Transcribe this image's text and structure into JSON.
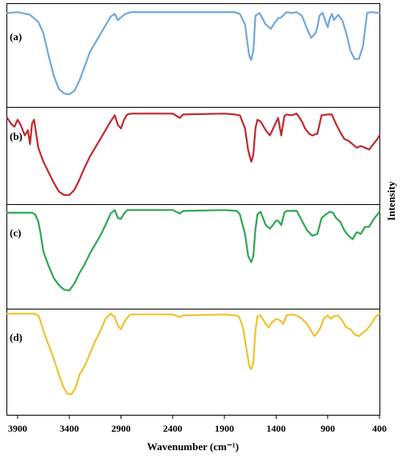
{
  "chart_data": {
    "type": "line",
    "xlabel": "Wavenumber (cm⁻¹)",
    "ylabel": "Intensity",
    "x_ticks": [
      3900,
      3400,
      2900,
      2400,
      1900,
      1400,
      900,
      400
    ],
    "xlim": [
      4000,
      400
    ],
    "grid": false,
    "legend": "none",
    "series": [
      {
        "name": "(a)",
        "color": "#6fa8dc",
        "points": [
          [
            4000,
            0.98
          ],
          [
            3900,
            0.99
          ],
          [
            3780,
            0.96
          ],
          [
            3700,
            0.88
          ],
          [
            3650,
            0.75
          ],
          [
            3600,
            0.5
          ],
          [
            3550,
            0.27
          ],
          [
            3500,
            0.12
          ],
          [
            3450,
            0.07
          ],
          [
            3400,
            0.06
          ],
          [
            3350,
            0.1
          ],
          [
            3300,
            0.22
          ],
          [
            3250,
            0.38
          ],
          [
            3200,
            0.54
          ],
          [
            3150,
            0.64
          ],
          [
            3100,
            0.74
          ],
          [
            3050,
            0.84
          ],
          [
            3000,
            0.94
          ],
          [
            2960,
            0.97
          ],
          [
            2930,
            0.9
          ],
          [
            2900,
            0.93
          ],
          [
            2860,
            0.97
          ],
          [
            2800,
            0.99
          ],
          [
            2400,
            0.99
          ],
          [
            2300,
            0.99
          ],
          [
            1900,
            0.99
          ],
          [
            1800,
            0.99
          ],
          [
            1750,
            0.97
          ],
          [
            1700,
            0.85
          ],
          [
            1660,
            0.5
          ],
          [
            1640,
            0.45
          ],
          [
            1620,
            0.55
          ],
          [
            1600,
            0.95
          ],
          [
            1560,
            0.98
          ],
          [
            1500,
            0.85
          ],
          [
            1450,
            0.8
          ],
          [
            1420,
            0.86
          ],
          [
            1380,
            0.92
          ],
          [
            1350,
            0.93
          ],
          [
            1300,
            0.99
          ],
          [
            1250,
            0.98
          ],
          [
            1200,
            0.99
          ],
          [
            1150,
            0.95
          ],
          [
            1100,
            0.8
          ],
          [
            1060,
            0.7
          ],
          [
            1020,
            0.75
          ],
          [
            1000,
            0.82
          ],
          [
            980,
            0.95
          ],
          [
            950,
            0.98
          ],
          [
            920,
            0.88
          ],
          [
            900,
            0.82
          ],
          [
            880,
            0.92
          ],
          [
            860,
            0.97
          ],
          [
            840,
            0.9
          ],
          [
            800,
            0.96
          ],
          [
            760,
            0.9
          ],
          [
            720,
            0.75
          ],
          [
            680,
            0.55
          ],
          [
            640,
            0.46
          ],
          [
            600,
            0.46
          ],
          [
            560,
            0.6
          ],
          [
            520,
            0.98
          ],
          [
            480,
            0.99
          ],
          [
            400,
            0.98
          ]
        ]
      },
      {
        "name": "(b)",
        "color": "#c0282d",
        "points": [
          [
            4000,
            0.92
          ],
          [
            3960,
            0.85
          ],
          [
            3930,
            0.82
          ],
          [
            3900,
            0.9
          ],
          [
            3870,
            0.84
          ],
          [
            3830,
            0.72
          ],
          [
            3800,
            0.78
          ],
          [
            3780,
            0.62
          ],
          [
            3760,
            0.86
          ],
          [
            3740,
            0.9
          ],
          [
            3720,
            0.74
          ],
          [
            3700,
            0.58
          ],
          [
            3650,
            0.42
          ],
          [
            3600,
            0.3
          ],
          [
            3550,
            0.18
          ],
          [
            3500,
            0.08
          ],
          [
            3450,
            0.04
          ],
          [
            3400,
            0.04
          ],
          [
            3350,
            0.1
          ],
          [
            3300,
            0.22
          ],
          [
            3250,
            0.36
          ],
          [
            3200,
            0.48
          ],
          [
            3150,
            0.58
          ],
          [
            3100,
            0.68
          ],
          [
            3050,
            0.78
          ],
          [
            3000,
            0.88
          ],
          [
            2960,
            0.95
          ],
          [
            2930,
            0.84
          ],
          [
            2900,
            0.8
          ],
          [
            2870,
            0.9
          ],
          [
            2840,
            0.96
          ],
          [
            2800,
            0.97
          ],
          [
            2400,
            0.97
          ],
          [
            2330,
            0.92
          ],
          [
            2300,
            0.96
          ],
          [
            1900,
            0.97
          ],
          [
            1800,
            0.96
          ],
          [
            1750,
            0.95
          ],
          [
            1700,
            0.8
          ],
          [
            1670,
            0.55
          ],
          [
            1640,
            0.42
          ],
          [
            1620,
            0.5
          ],
          [
            1600,
            0.8
          ],
          [
            1580,
            0.9
          ],
          [
            1550,
            0.88
          ],
          [
            1500,
            0.78
          ],
          [
            1460,
            0.72
          ],
          [
            1420,
            0.82
          ],
          [
            1380,
            0.92
          ],
          [
            1350,
            0.72
          ],
          [
            1320,
            0.94
          ],
          [
            1300,
            0.96
          ],
          [
            1250,
            0.95
          ],
          [
            1200,
            0.97
          ],
          [
            1150,
            0.88
          ],
          [
            1120,
            0.8
          ],
          [
            1080,
            0.74
          ],
          [
            1050,
            0.72
          ],
          [
            1000,
            0.74
          ],
          [
            960,
            0.95
          ],
          [
            900,
            0.96
          ],
          [
            860,
            0.96
          ],
          [
            820,
            0.85
          ],
          [
            780,
            0.76
          ],
          [
            740,
            0.68
          ],
          [
            700,
            0.66
          ],
          [
            660,
            0.62
          ],
          [
            620,
            0.58
          ],
          [
            580,
            0.6
          ],
          [
            540,
            0.58
          ],
          [
            500,
            0.56
          ],
          [
            460,
            0.62
          ],
          [
            420,
            0.68
          ],
          [
            400,
            0.72
          ]
        ]
      },
      {
        "name": "(c)",
        "color": "#2ea653",
        "points": [
          [
            4000,
            0.94
          ],
          [
            3900,
            0.94
          ],
          [
            3800,
            0.94
          ],
          [
            3760,
            0.94
          ],
          [
            3730,
            0.92
          ],
          [
            3700,
            0.84
          ],
          [
            3680,
            0.72
          ],
          [
            3650,
            0.5
          ],
          [
            3600,
            0.34
          ],
          [
            3550,
            0.2
          ],
          [
            3500,
            0.12
          ],
          [
            3450,
            0.07
          ],
          [
            3400,
            0.06
          ],
          [
            3350,
            0.14
          ],
          [
            3300,
            0.26
          ],
          [
            3250,
            0.36
          ],
          [
            3200,
            0.48
          ],
          [
            3150,
            0.58
          ],
          [
            3100,
            0.68
          ],
          [
            3050,
            0.8
          ],
          [
            3000,
            0.93
          ],
          [
            2960,
            0.97
          ],
          [
            2930,
            0.88
          ],
          [
            2900,
            0.87
          ],
          [
            2870,
            0.93
          ],
          [
            2840,
            0.97
          ],
          [
            2800,
            0.97
          ],
          [
            2400,
            0.97
          ],
          [
            2330,
            0.93
          ],
          [
            2300,
            0.96
          ],
          [
            1900,
            0.97
          ],
          [
            1780,
            0.96
          ],
          [
            1750,
            0.92
          ],
          [
            1700,
            0.7
          ],
          [
            1670,
            0.45
          ],
          [
            1640,
            0.38
          ],
          [
            1620,
            0.45
          ],
          [
            1600,
            0.75
          ],
          [
            1580,
            0.92
          ],
          [
            1550,
            0.95
          ],
          [
            1500,
            0.8
          ],
          [
            1460,
            0.76
          ],
          [
            1430,
            0.8
          ],
          [
            1400,
            0.85
          ],
          [
            1380,
            0.85
          ],
          [
            1350,
            0.8
          ],
          [
            1320,
            0.94
          ],
          [
            1300,
            0.96
          ],
          [
            1250,
            0.96
          ],
          [
            1200,
            0.96
          ],
          [
            1150,
            0.85
          ],
          [
            1100,
            0.74
          ],
          [
            1050,
            0.68
          ],
          [
            1000,
            0.7
          ],
          [
            960,
            0.88
          ],
          [
            920,
            0.92
          ],
          [
            880,
            0.95
          ],
          [
            850,
            0.94
          ],
          [
            820,
            0.88
          ],
          [
            780,
            0.84
          ],
          [
            740,
            0.74
          ],
          [
            700,
            0.68
          ],
          [
            660,
            0.64
          ],
          [
            620,
            0.72
          ],
          [
            580,
            0.7
          ],
          [
            540,
            0.78
          ],
          [
            500,
            0.78
          ],
          [
            460,
            0.86
          ],
          [
            420,
            0.92
          ],
          [
            400,
            0.95
          ]
        ]
      },
      {
        "name": "(d)",
        "color": "#f2c12e",
        "points": [
          [
            4000,
            0.98
          ],
          [
            3900,
            0.98
          ],
          [
            3800,
            0.98
          ],
          [
            3740,
            0.98
          ],
          [
            3700,
            0.96
          ],
          [
            3680,
            0.9
          ],
          [
            3650,
            0.78
          ],
          [
            3600,
            0.62
          ],
          [
            3550,
            0.46
          ],
          [
            3500,
            0.28
          ],
          [
            3460,
            0.14
          ],
          [
            3420,
            0.06
          ],
          [
            3380,
            0.05
          ],
          [
            3340,
            0.12
          ],
          [
            3300,
            0.28
          ],
          [
            3250,
            0.38
          ],
          [
            3200,
            0.52
          ],
          [
            3150,
            0.66
          ],
          [
            3100,
            0.78
          ],
          [
            3050,
            0.92
          ],
          [
            3000,
            0.98
          ],
          [
            2960,
            0.94
          ],
          [
            2930,
            0.84
          ],
          [
            2900,
            0.8
          ],
          [
            2860,
            0.9
          ],
          [
            2820,
            0.96
          ],
          [
            2800,
            0.97
          ],
          [
            2400,
            0.97
          ],
          [
            2330,
            0.94
          ],
          [
            2300,
            0.96
          ],
          [
            1900,
            0.97
          ],
          [
            1800,
            0.96
          ],
          [
            1760,
            0.95
          ],
          [
            1720,
            0.82
          ],
          [
            1690,
            0.6
          ],
          [
            1660,
            0.38
          ],
          [
            1640,
            0.34
          ],
          [
            1620,
            0.42
          ],
          [
            1600,
            0.78
          ],
          [
            1580,
            0.95
          ],
          [
            1550,
            0.96
          ],
          [
            1500,
            0.86
          ],
          [
            1470,
            0.82
          ],
          [
            1440,
            0.88
          ],
          [
            1400,
            0.92
          ],
          [
            1360,
            0.9
          ],
          [
            1330,
            0.86
          ],
          [
            1300,
            0.96
          ],
          [
            1250,
            0.97
          ],
          [
            1200,
            0.96
          ],
          [
            1150,
            0.92
          ],
          [
            1100,
            0.86
          ],
          [
            1060,
            0.78
          ],
          [
            1030,
            0.72
          ],
          [
            1000,
            0.76
          ],
          [
            970,
            0.82
          ],
          [
            940,
            0.92
          ],
          [
            900,
            0.96
          ],
          [
            870,
            0.92
          ],
          [
            840,
            0.95
          ],
          [
            800,
            0.96
          ],
          [
            760,
            0.9
          ],
          [
            720,
            0.82
          ],
          [
            680,
            0.8
          ],
          [
            640,
            0.74
          ],
          [
            600,
            0.72
          ],
          [
            560,
            0.76
          ],
          [
            520,
            0.8
          ],
          [
            480,
            0.86
          ],
          [
            440,
            0.94
          ],
          [
            400,
            0.98
          ]
        ]
      }
    ]
  }
}
